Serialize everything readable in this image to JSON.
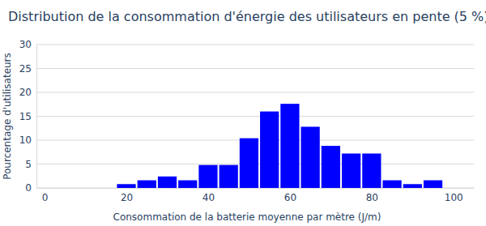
{
  "chart_data": {
    "type": "histogram",
    "title": "Distribution de la consommation d'énergie des utilisateurs en pente (5 %)",
    "x_label": "Consommation de la batterie moyenne par mètre (J/m)",
    "y_label": "Pourcentage d'utilisateurs",
    "bins": [
      17.5,
      22.5,
      27.5,
      32.5,
      37.5,
      42.5,
      47.5,
      52.5,
      57.5,
      62.5,
      67.5,
      72.5,
      77.5,
      82.5,
      87.5,
      92.5,
      97.5
    ],
    "values": [
      0.8,
      1.6,
      2.4,
      1.6,
      4.8,
      4.8,
      10.4,
      16,
      17.6,
      12.8,
      8.8,
      7.2,
      7.2,
      1.6,
      0.8,
      1.6
    ],
    "color": "#0000ff",
    "xlim": [
      -2,
      105
    ],
    "xticks": [
      0,
      20,
      40,
      60,
      80,
      100
    ],
    "ylim": [
      0,
      30
    ],
    "yticks": [
      0,
      5,
      10,
      15,
      20,
      25,
      30
    ],
    "grid": true
  }
}
